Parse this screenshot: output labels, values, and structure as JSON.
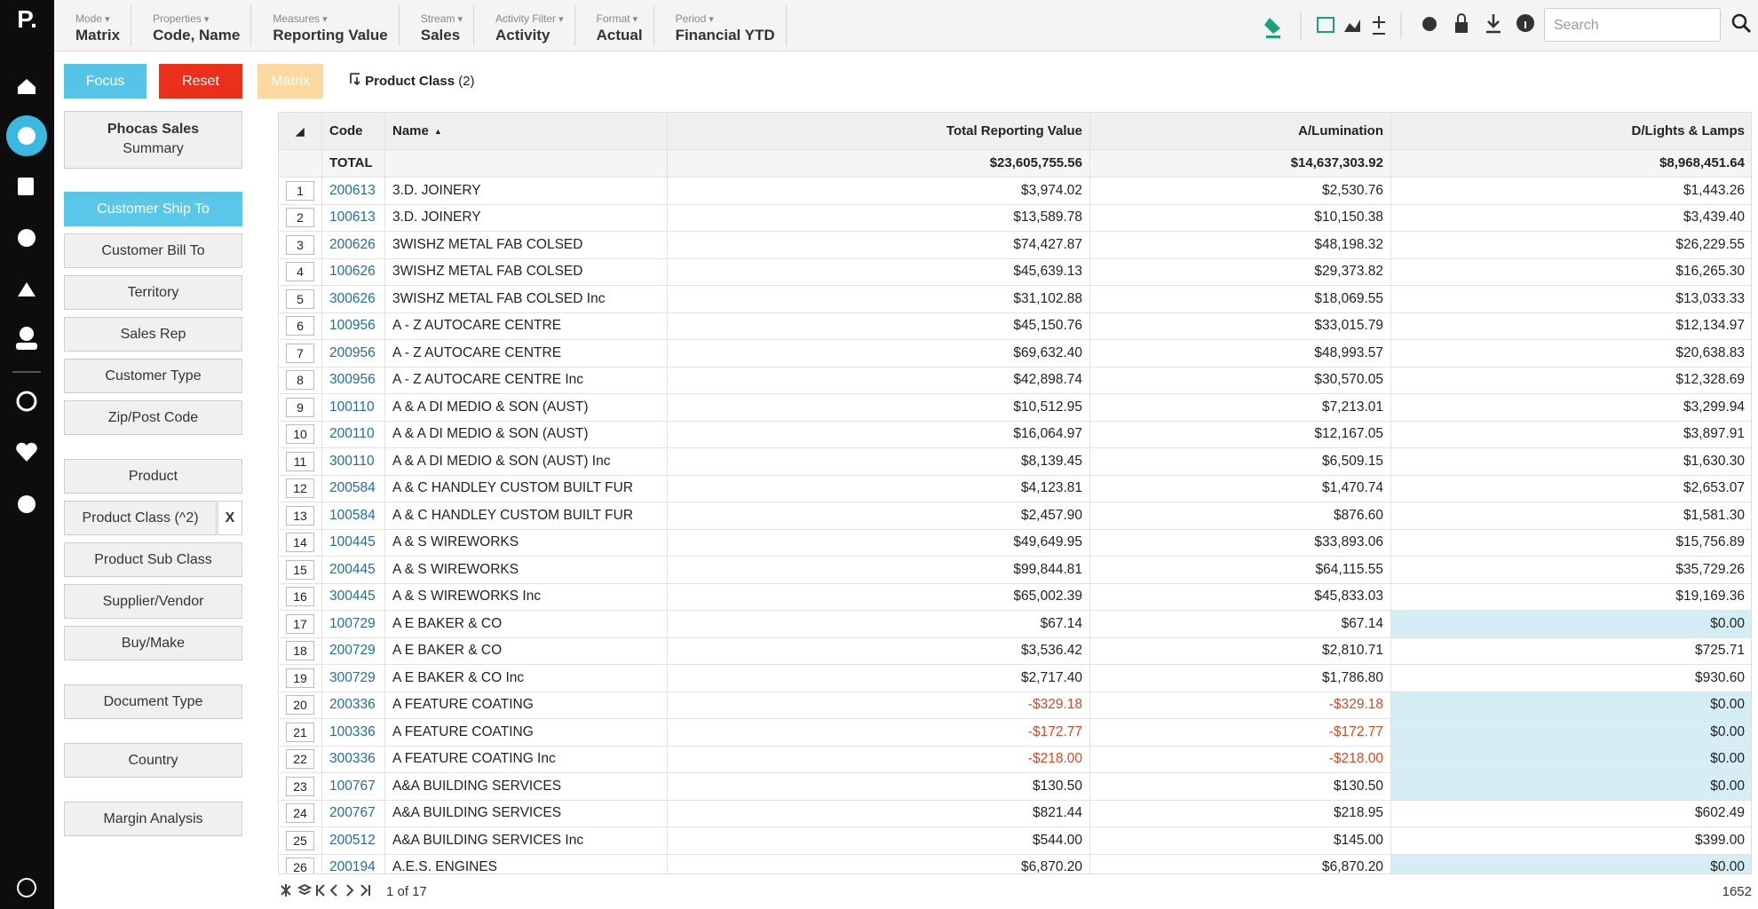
{
  "logo": "P.",
  "toolbar": [
    [
      "Mode",
      "Matrix"
    ],
    [
      "Properties",
      "Code, Name"
    ],
    [
      "Measures",
      "Reporting Value"
    ],
    [
      "Stream",
      "Sales"
    ],
    [
      "Activity Filter",
      "Activity"
    ],
    [
      "Format",
      "Actual"
    ],
    [
      "Period",
      "Financial YTD"
    ]
  ],
  "search": "Search",
  "buttons": [
    "Focus",
    "Reset",
    "Matrix"
  ],
  "breadcrumb": {
    "label": "Product Class",
    "count": "(2)"
  },
  "sidebar": {
    "title": "Phocas Sales",
    "subtitle": "Summary",
    "groups": [
      [
        "Customer Ship To",
        "Customer Bill To",
        "Territory",
        "Sales Rep",
        "Customer Type",
        "Zip/Post Code"
      ],
      [
        "Product",
        "Product Class (^2)",
        "Product Sub Class",
        "Supplier/Vendor",
        "Buy/Make"
      ],
      [
        "Document Type"
      ],
      [
        "Country"
      ],
      [
        "Margin Analysis"
      ]
    ],
    "remove": "X"
  },
  "table": {
    "headers": [
      "Code",
      "Name",
      "Total Reporting Value",
      "A/Lumination",
      "D/Lights & Lamps"
    ],
    "total": [
      "TOTAL",
      "$23,605,755.56",
      "$14,637,303.92",
      "$8,968,451.64"
    ],
    "rows": [
      [
        1,
        "200613",
        "3.D. JOINERY",
        "$3,974.02",
        "$2,530.76",
        "$1,443.26"
      ],
      [
        2,
        "100613",
        "3.D. JOINERY",
        "$13,589.78",
        "$10,150.38",
        "$3,439.40"
      ],
      [
        3,
        "200626",
        "3WISHZ METAL FAB COLSED",
        "$74,427.87",
        "$48,198.32",
        "$26,229.55"
      ],
      [
        4,
        "100626",
        "3WISHZ METAL FAB COLSED",
        "$45,639.13",
        "$29,373.82",
        "$16,265.30"
      ],
      [
        5,
        "300626",
        "3WISHZ METAL FAB COLSED Inc",
        "$31,102.88",
        "$18,069.55",
        "$13,033.33"
      ],
      [
        6,
        "100956",
        "A - Z AUTOCARE CENTRE",
        "$45,150.76",
        "$33,015.79",
        "$12,134.97"
      ],
      [
        7,
        "200956",
        "A - Z AUTOCARE CENTRE",
        "$69,632.40",
        "$48,993.57",
        "$20,638.83"
      ],
      [
        8,
        "300956",
        "A - Z AUTOCARE CENTRE Inc",
        "$42,898.74",
        "$30,570.05",
        "$12,328.69"
      ],
      [
        9,
        "100110",
        "A & A DI MEDIO & SON (AUST)",
        "$10,512.95",
        "$7,213.01",
        "$3,299.94"
      ],
      [
        10,
        "200110",
        "A & A DI MEDIO & SON (AUST)",
        "$16,064.97",
        "$12,167.05",
        "$3,897.91"
      ],
      [
        11,
        "300110",
        "A & A DI MEDIO & SON (AUST) Inc",
        "$8,139.45",
        "$6,509.15",
        "$1,630.30"
      ],
      [
        12,
        "200584",
        "A & C HANDLEY CUSTOM BUILT FUR",
        "$4,123.81",
        "$1,470.74",
        "$2,653.07"
      ],
      [
        13,
        "100584",
        "A & C HANDLEY CUSTOM BUILT FUR",
        "$2,457.90",
        "$876.60",
        "$1,581.30"
      ],
      [
        14,
        "100445",
        "A & S WIREWORKS",
        "$49,649.95",
        "$33,893.06",
        "$15,756.89"
      ],
      [
        15,
        "200445",
        "A & S WIREWORKS",
        "$99,844.81",
        "$64,115.55",
        "$35,729.26"
      ],
      [
        16,
        "300445",
        "A & S WIREWORKS Inc",
        "$65,002.39",
        "$45,833.03",
        "$19,169.36"
      ],
      [
        17,
        "100729",
        "A E BAKER & CO",
        "$67.14",
        "$67.14",
        "$0.00"
      ],
      [
        18,
        "200729",
        "A E BAKER & CO",
        "$3,536.42",
        "$2,810.71",
        "$725.71"
      ],
      [
        19,
        "300729",
        "A E BAKER & CO Inc",
        "$2,717.40",
        "$1,786.80",
        "$930.60"
      ],
      [
        20,
        "200336",
        "A FEATURE COATING",
        "-$329.18",
        "-$329.18",
        "$0.00"
      ],
      [
        21,
        "100336",
        "A FEATURE COATING",
        "-$172.77",
        "-$172.77",
        "$0.00"
      ],
      [
        22,
        "300336",
        "A FEATURE COATING Inc",
        "-$218.00",
        "-$218.00",
        "$0.00"
      ],
      [
        23,
        "100767",
        "A&A BUILDING SERVICES",
        "$130.50",
        "$130.50",
        "$0.00"
      ],
      [
        24,
        "200767",
        "A&A BUILDING SERVICES",
        "$821.44",
        "$218.95",
        "$602.49"
      ],
      [
        25,
        "200512",
        "A&A BUILDING SERVICES Inc",
        "$544.00",
        "$145.00",
        "$399.00"
      ],
      [
        26,
        "200194",
        "A.E.S. ENGINES",
        "$6,870.20",
        "$6,870.20",
        "$0.00"
      ]
    ]
  },
  "footer": {
    "pages": "1 of 17",
    "count": "1652"
  }
}
